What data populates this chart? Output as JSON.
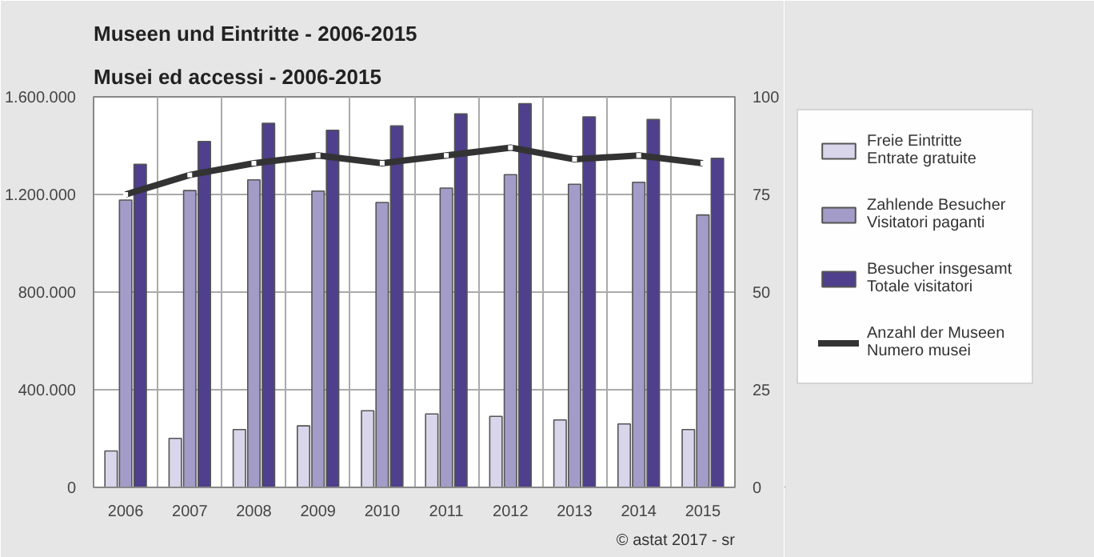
{
  "chart_data": {
    "type": "bar",
    "title": "Museen und Eintritte - 2006-2015",
    "subtitle": "Musei ed accessi - 2006-2015",
    "categories": [
      "2006",
      "2007",
      "2008",
      "2009",
      "2010",
      "2011",
      "2012",
      "2013",
      "2014",
      "2015"
    ],
    "series": [
      {
        "name": "Freie Eintritte\nEntrate gratuite",
        "color": "#d9d5ea",
        "values": [
          149000,
          201000,
          237000,
          252000,
          314000,
          301000,
          291000,
          276000,
          260000,
          237000
        ]
      },
      {
        "name": "Zahlende Besucher\nVisitatori paganti",
        "color": "#a39cc8",
        "values": [
          1177000,
          1216000,
          1260000,
          1214000,
          1167000,
          1226000,
          1281000,
          1242000,
          1250000,
          1116000
        ]
      },
      {
        "name": "Besucher insgesamt\nTotale visitatori",
        "color": "#4f3f8c",
        "values": [
          1324000,
          1417000,
          1492000,
          1463000,
          1481000,
          1530000,
          1572000,
          1518000,
          1507000,
          1348000
        ]
      },
      {
        "name": "Anzahl der Museen\nNumero musei",
        "type": "line",
        "axis": "y2",
        "color": "#333333",
        "marker": "square",
        "values": [
          75,
          80,
          83,
          85,
          83,
          85,
          87,
          84,
          85,
          83
        ]
      }
    ],
    "ylim": [
      0,
      1600000
    ],
    "yticks": [
      {
        "value": 0,
        "label": "0"
      },
      {
        "value": 400000,
        "label": "400.000"
      },
      {
        "value": 800000,
        "label": "800.000"
      },
      {
        "value": 1200000,
        "label": "1.200.000"
      },
      {
        "value": 1600000,
        "label": "1.600.000"
      }
    ],
    "y2lim": [
      0,
      100
    ],
    "y2ticks": [
      0,
      25,
      50,
      75,
      100
    ],
    "grid": true,
    "legend": "right",
    "annotations": [
      "© astat 2017 - sr"
    ]
  }
}
